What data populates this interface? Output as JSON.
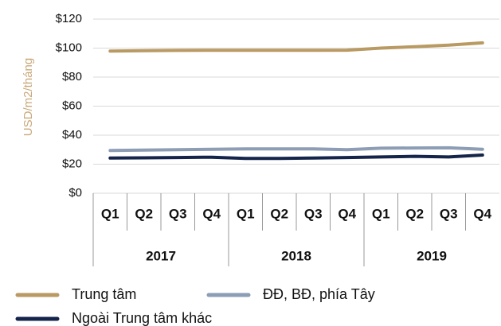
{
  "chart_data": {
    "type": "line",
    "y_label": "USD/m2/tháng",
    "categories": [
      "Q1",
      "Q2",
      "Q3",
      "Q4",
      "Q1",
      "Q2",
      "Q3",
      "Q4",
      "Q1",
      "Q2",
      "Q3",
      "Q4"
    ],
    "groups": [
      "2017",
      "2018",
      "2019"
    ],
    "series": [
      {
        "name": "Trung tâm",
        "color": "#b99a62",
        "values": [
          98,
          98.2,
          98.4,
          98.5,
          98.5,
          98.5,
          98.5,
          98.6,
          100,
          101,
          102,
          103.6
        ]
      },
      {
        "name": "ĐĐ, BĐ, phía Tây",
        "color": "#8d9db5",
        "values": [
          29.5,
          29.7,
          30,
          30.3,
          30.5,
          30.5,
          30.5,
          30,
          31,
          31.2,
          31.3,
          30.3
        ]
      },
      {
        "name": "Ngoài Trung tâm khác",
        "color": "#14244a",
        "values": [
          24.2,
          24.4,
          24.6,
          24.8,
          24,
          24,
          24.3,
          24.6,
          25,
          25.4,
          25,
          26.3
        ]
      }
    ],
    "ylim": [
      0,
      120
    ],
    "yticks": [
      {
        "value": 0,
        "label": "$0"
      },
      {
        "value": 20,
        "label": "$20"
      },
      {
        "value": 40,
        "label": "$40"
      },
      {
        "value": 60,
        "label": "$60"
      },
      {
        "value": 80,
        "label": "$80"
      },
      {
        "value": 100,
        "label": "$100"
      },
      {
        "value": 120,
        "label": "$120"
      }
    ],
    "grid": true
  }
}
